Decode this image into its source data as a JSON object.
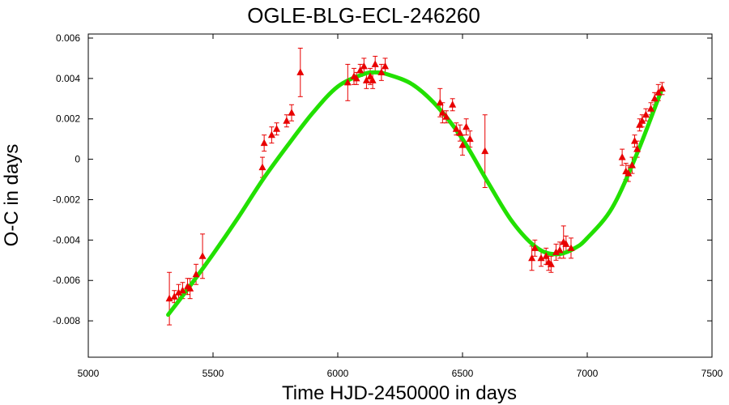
{
  "chart_data": {
    "type": "scatter",
    "title": "OGLE-BLG-ECL-246260",
    "xlabel": "Time HJD-2450000 in days",
    "ylabel": "O-C in days",
    "xlim": [
      5000,
      7500
    ],
    "ylim": [
      -0.0098,
      0.0062
    ],
    "x_ticks": [
      5000,
      5500,
      6000,
      6500,
      7000,
      7500
    ],
    "x_tick_labels": [
      "5000",
      "5500",
      "6000",
      "6500",
      "7000",
      "7500"
    ],
    "y_ticks": [
      0.006,
      0.004,
      0.002,
      0,
      -0.002,
      -0.004,
      -0.006,
      -0.008
    ],
    "y_tick_labels": [
      "0.006",
      "0.004",
      "0.002",
      "0",
      "-0.002",
      "-0.004",
      "-0.006",
      "-0.008"
    ],
    "grid": false,
    "legend": "none",
    "series": [
      {
        "kind": "points_with_errorbars",
        "marker": "triangle",
        "color": "#e80000",
        "x": [
          5325,
          5345,
          5362,
          5378,
          5398,
          5408,
          5432,
          5458,
          5698,
          5705,
          5735,
          5755,
          5795,
          5815,
          5850,
          6040,
          6065,
          6075,
          6090,
          6105,
          6115,
          6130,
          6140,
          6150,
          6175,
          6190,
          6410,
          6420,
          6435,
          6460,
          6475,
          6490,
          6500,
          6515,
          6530,
          6590,
          6778,
          6790,
          6815,
          6835,
          6845,
          6855,
          6875,
          6890,
          6905,
          6915,
          6935,
          7140,
          7155,
          7165,
          7180,
          7190,
          7200,
          7210,
          7220,
          7235,
          7255,
          7270,
          7285,
          7300
        ],
        "y": [
          -0.0069,
          -0.0068,
          -0.0066,
          -0.0065,
          -0.0063,
          -0.0064,
          -0.0057,
          -0.0048,
          -0.0004,
          0.0008,
          0.0012,
          0.0015,
          0.0019,
          0.0023,
          0.0043,
          0.0038,
          0.0041,
          0.004,
          0.0044,
          0.0046,
          0.0039,
          0.0041,
          0.0039,
          0.0047,
          0.0043,
          0.0046,
          0.0028,
          0.0023,
          0.0021,
          0.0027,
          0.0015,
          0.0013,
          0.0007,
          0.0016,
          0.001,
          0.0004,
          -0.0049,
          -0.0044,
          -0.0049,
          -0.0048,
          -0.0051,
          -0.0052,
          -0.0046,
          -0.0045,
          -0.0041,
          -0.0042,
          -0.0044,
          0.0001,
          -0.0006,
          -0.0007,
          -0.0003,
          0.0009,
          0.0005,
          0.0017,
          0.0019,
          0.0022,
          0.0025,
          0.003,
          0.0033,
          0.0035
        ],
        "yerr": [
          0.0013,
          0.0003,
          0.0004,
          0.0004,
          0.0004,
          0.0005,
          0.0005,
          0.0011,
          0.0005,
          0.0004,
          0.0004,
          0.0003,
          0.0003,
          0.0004,
          0.0012,
          0.0009,
          0.0004,
          0.0003,
          0.0003,
          0.0004,
          0.0004,
          0.0004,
          0.0004,
          0.0004,
          0.0004,
          0.0004,
          0.0007,
          0.0005,
          0.0003,
          0.0003,
          0.0003,
          0.0004,
          0.0005,
          0.0004,
          0.0004,
          0.0018,
          0.0006,
          0.0004,
          0.0004,
          0.0004,
          0.0004,
          0.0004,
          0.0004,
          0.0004,
          0.0008,
          0.0004,
          0.0005,
          0.0004,
          0.0004,
          0.0004,
          0.0004,
          0.0003,
          0.0004,
          0.0003,
          0.0003,
          0.0003,
          0.0003,
          0.0003,
          0.0004,
          0.0003
        ]
      },
      {
        "kind": "model_curve",
        "color": "#22e000",
        "x": [
          5320,
          5400,
          5500,
          5600,
          5700,
          5800,
          5900,
          6000,
          6100,
          6150,
          6200,
          6300,
          6400,
          6500,
          6600,
          6700,
          6800,
          6880,
          6950,
          7000,
          7100,
          7200,
          7300
        ],
        "y": [
          -0.0077,
          -0.0064,
          -0.0047,
          -0.0029,
          -0.001,
          0.0007,
          0.0023,
          0.0036,
          0.0042,
          0.0043,
          0.0042,
          0.0037,
          0.0026,
          0.001,
          -0.0011,
          -0.0031,
          -0.0044,
          -0.0047,
          -0.0044,
          -0.0039,
          -0.0024,
          0.0003,
          0.0035
        ]
      }
    ]
  }
}
